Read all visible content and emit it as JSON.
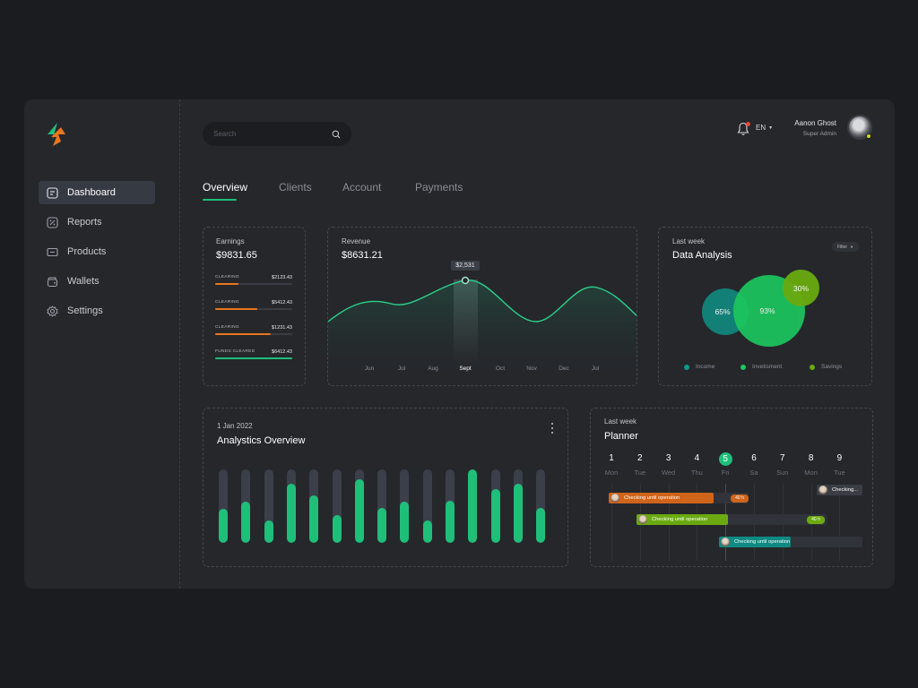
{
  "sidebar": {
    "items": [
      {
        "label": "Dashboard",
        "icon": "dashboard-icon"
      },
      {
        "label": "Reports",
        "icon": "reports-icon"
      },
      {
        "label": "Products",
        "icon": "products-icon"
      },
      {
        "label": "Wallets",
        "icon": "wallet-icon"
      },
      {
        "label": "Settings",
        "icon": "settings-icon"
      }
    ]
  },
  "header": {
    "search_placeholder": "Search",
    "language": "EN",
    "user": {
      "name": "Aanon Ghost",
      "role": "Super Admin"
    }
  },
  "tabs": [
    "Overview",
    "Clients",
    "Account",
    "Payments"
  ],
  "earnings": {
    "label": "Earnings",
    "total": "$9831.65",
    "rows": [
      {
        "label": "CLEARING",
        "amount": "$2123.43",
        "progress": 0.3,
        "color": "#e8761f"
      },
      {
        "label": "CLEARING",
        "amount": "$5412.43",
        "progress": 0.55,
        "color": "#e8761f"
      },
      {
        "label": "CLEARING",
        "amount": "$1231.43",
        "progress": 0.72,
        "color": "#e8761f"
      },
      {
        "label": "FUNDS CLEARED",
        "amount": "$6412.43",
        "progress": 1.0,
        "color": "#1fbf7a"
      }
    ]
  },
  "revenue": {
    "label": "Revenue",
    "total": "$8631.21",
    "tooltip": "$2,531",
    "months": [
      "Jun",
      "Jul",
      "Aug",
      "Sept",
      "Oct",
      "Nov",
      "Dec",
      "Jul"
    ],
    "active_month": "Sept"
  },
  "data_analysis": {
    "label": "Last week",
    "title": "Data Analysis",
    "filter": "Filter",
    "bubbles": [
      {
        "value": "65%",
        "color": "#11857c"
      },
      {
        "value": "93%",
        "color": "#1cc65e"
      },
      {
        "value": "30%",
        "color": "#6aaa10"
      }
    ],
    "legend": [
      {
        "label": "Income",
        "color": "#0f9a8c"
      },
      {
        "label": "Invetisment",
        "color": "#1cc65e"
      },
      {
        "label": "Savings",
        "color": "#6aaa10"
      }
    ]
  },
  "analytics": {
    "date": "1 Jan 2022",
    "title": "Analystics Overview",
    "bars": [
      0.46,
      0.56,
      0.3,
      0.8,
      0.65,
      0.38,
      0.86,
      0.47,
      0.56,
      0.3,
      0.57,
      1.0,
      0.73,
      0.8,
      0.47
    ]
  },
  "planner": {
    "label": "Last week",
    "title": "Planner",
    "days": [
      {
        "num": "1",
        "name": "Mon"
      },
      {
        "num": "2",
        "name": "Tue"
      },
      {
        "num": "3",
        "name": "Wed"
      },
      {
        "num": "4",
        "name": "Thu"
      },
      {
        "num": "5",
        "name": "Fri"
      },
      {
        "num": "6",
        "name": "Sa"
      },
      {
        "num": "7",
        "name": "Sun"
      },
      {
        "num": "8",
        "name": "Mon"
      },
      {
        "num": "9",
        "name": "Tue"
      }
    ],
    "active_day": "5",
    "tasks": [
      {
        "label": "Checking until operation",
        "hours": "40 h",
        "color": "#d0641a",
        "badge_color": "#d0641a"
      },
      {
        "label": "Checking...",
        "hours": "",
        "color": "#3a3d44",
        "badge_color": ""
      },
      {
        "label": "Checking until operation",
        "hours": "40 h",
        "color": "#6aaa10",
        "badge_color": "#6aaa10"
      },
      {
        "label": "Checking until operation",
        "hours": "",
        "color": "#0f8a82",
        "badge_color": ""
      }
    ]
  }
}
